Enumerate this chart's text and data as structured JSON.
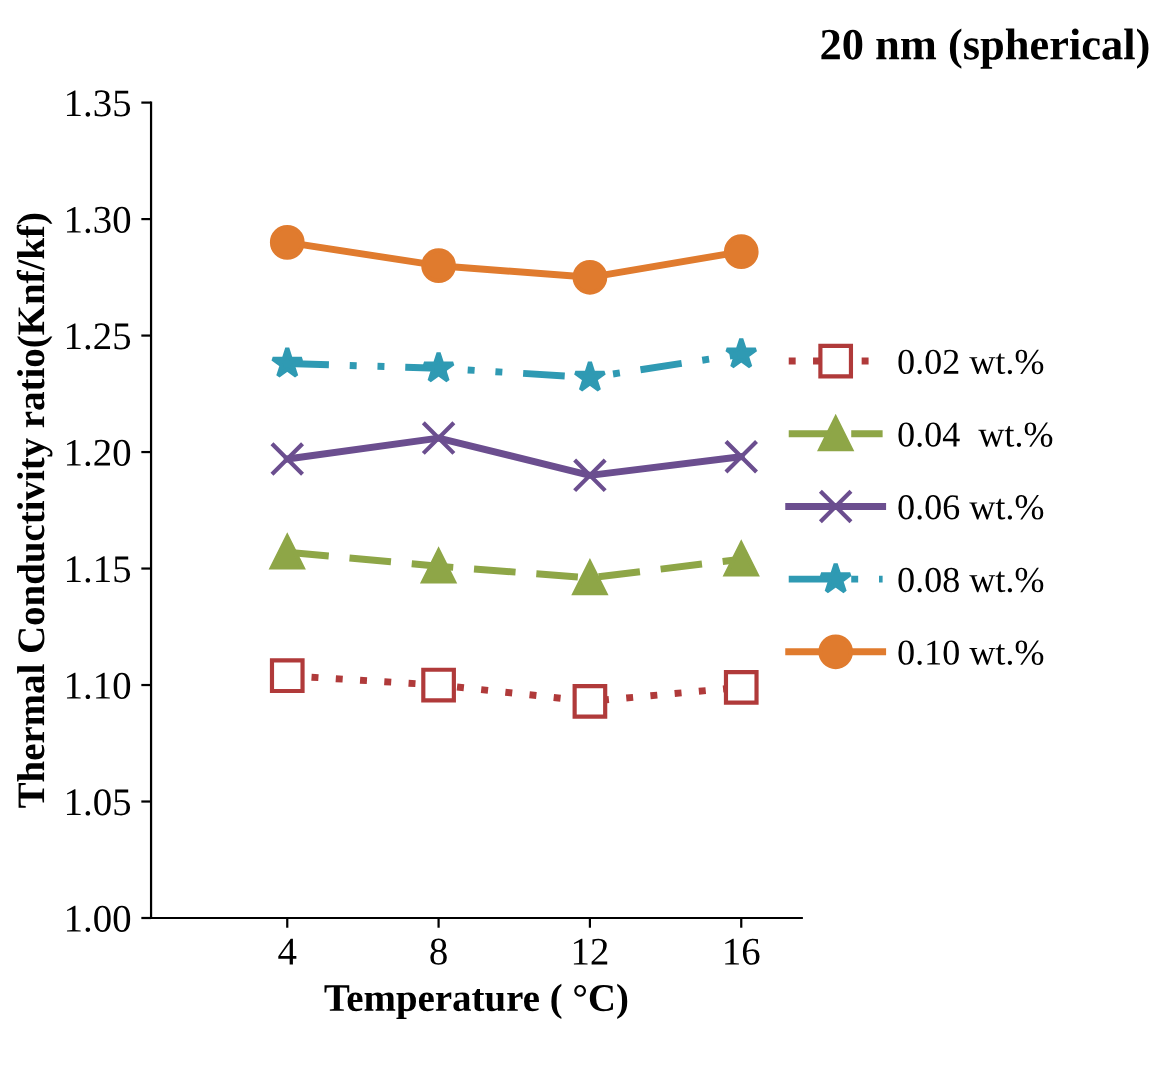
{
  "chart_data": {
    "type": "line",
    "title": "20 nm (spherical)",
    "xlabel": "Temperature ( °C)",
    "ylabel": "Thermal Conductivity ratio(Knf/kf)",
    "categories": [
      "4",
      "8",
      "12",
      "16"
    ],
    "series": [
      {
        "name": "0.02 wt.%",
        "color": "#b03a3a",
        "values": [
          1.104,
          1.1,
          1.093,
          1.099
        ],
        "marker": "square",
        "line_style": "dotted"
      },
      {
        "name": "0.04  wt.%",
        "color": "#8ea647",
        "values": [
          1.157,
          1.151,
          1.146,
          1.154
        ],
        "marker": "triangle",
        "line_style": "dashed"
      },
      {
        "name": "0.06 wt.%",
        "color": "#6b4e8f",
        "values": [
          1.197,
          1.206,
          1.19,
          1.198
        ],
        "marker": "cross",
        "line_style": "solid"
      },
      {
        "name": "0.08 wt.%",
        "color": "#2f9ab3",
        "values": [
          1.238,
          1.236,
          1.232,
          1.242
        ],
        "marker": "star",
        "line_style": "dashdot"
      },
      {
        "name": "0.10 wt.%",
        "color": "#e07b2e",
        "values": [
          1.29,
          1.28,
          1.275,
          1.286
        ],
        "marker": "circle",
        "line_style": "solid"
      }
    ],
    "ylim": [
      1.0,
      1.35
    ],
    "yticks": [
      {
        "value": 1.0,
        "label": "1.00"
      },
      {
        "value": 1.05,
        "label": "1.05"
      },
      {
        "value": 1.1,
        "label": "1.10"
      },
      {
        "value": 1.15,
        "label": "1.15"
      },
      {
        "value": 1.2,
        "label": "1.20"
      },
      {
        "value": 1.25,
        "label": "1.25"
      },
      {
        "value": 1.3,
        "label": "1.30"
      },
      {
        "value": 1.35,
        "label": "1.35"
      }
    ],
    "grid": false,
    "legend": "right"
  }
}
